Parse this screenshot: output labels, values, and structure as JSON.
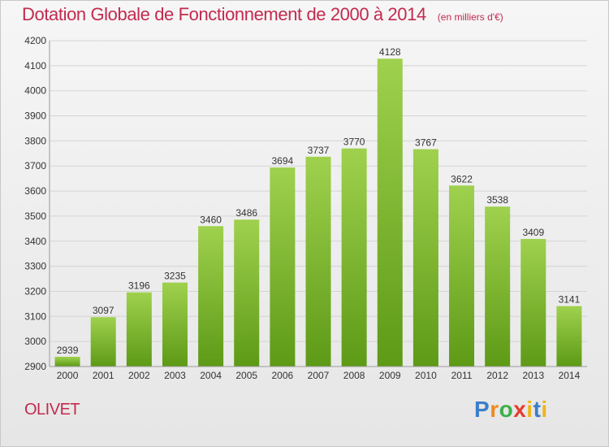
{
  "header": {
    "title": "Dotation Globale de Fonctionnement de 2000 à 2014",
    "unit_note": "(en milliers d'€)"
  },
  "footer": {
    "commune": "OLIVET",
    "brand": "Proxiti"
  },
  "colors": {
    "title": "#c32a4e",
    "bar_top": "#9fd14e",
    "bar_bottom": "#5d9a16",
    "background": "#eeeeee"
  },
  "chart_data": {
    "type": "bar",
    "title": "Dotation Globale de Fonctionnement de 2000 à 2014",
    "subtitle": "(en milliers d'€)",
    "xlabel": "",
    "ylabel": "",
    "categories": [
      "2000",
      "2001",
      "2002",
      "2003",
      "2004",
      "2005",
      "2006",
      "2007",
      "2008",
      "2009",
      "2010",
      "2011",
      "2012",
      "2013",
      "2014"
    ],
    "values": [
      2939,
      3097,
      3196,
      3235,
      3460,
      3486,
      3694,
      3737,
      3770,
      4128,
      3767,
      3622,
      3538,
      3409,
      3141
    ],
    "ylim": [
      2900,
      4200
    ],
    "yticks": [
      2900,
      3000,
      3100,
      3200,
      3300,
      3400,
      3500,
      3600,
      3700,
      3800,
      3900,
      4000,
      4100,
      4200
    ],
    "grid": true,
    "data_labels": true
  }
}
